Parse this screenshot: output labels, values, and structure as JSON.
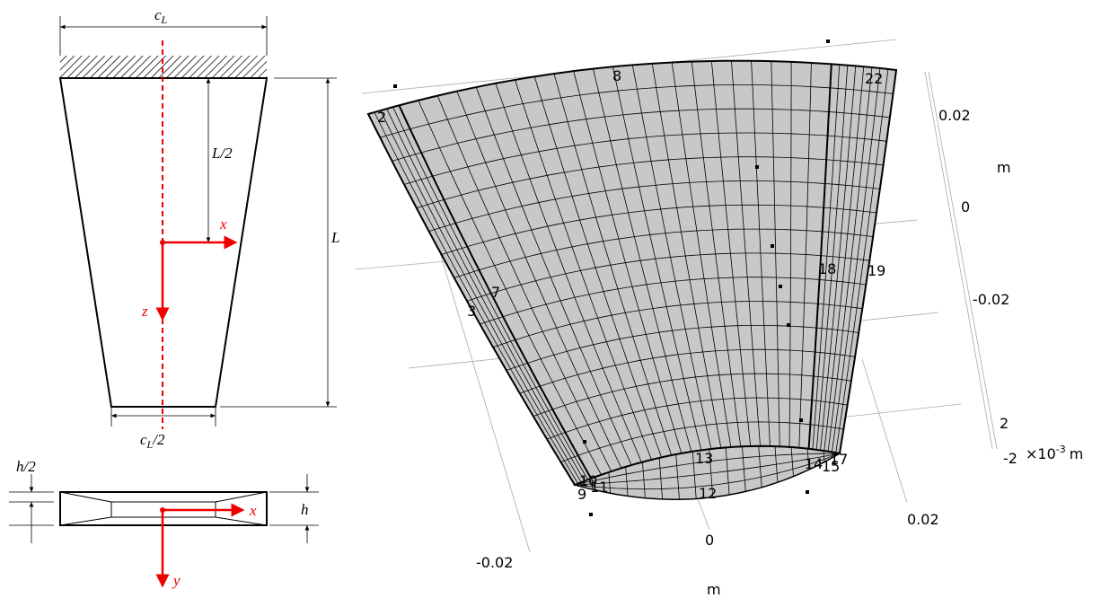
{
  "left": {
    "top_width": {
      "main": "c",
      "sub": "L"
    },
    "half_length": "L/2",
    "x_axis": "x",
    "z_axis": "z",
    "length": "L",
    "bottom_width": {
      "main": "c",
      "sub": "L",
      "suffix": "/2"
    },
    "half_height": "h/2",
    "height": "h",
    "section_x": "x",
    "section_y": "y"
  },
  "mesh": {
    "edge_labels": [
      "2",
      "8",
      "22",
      "3",
      "7",
      "18",
      "19",
      "13",
      "12",
      "10",
      "9",
      "11",
      "14",
      "15",
      "17"
    ]
  },
  "axes": {
    "vertical_ticks": [
      "0.02",
      "0",
      "-0.02"
    ],
    "vertical_unit": "m",
    "depth_ticks": [
      "2",
      "-2"
    ],
    "depth_scale": {
      "base": "×10",
      "exp": "-3",
      "unit": "m"
    },
    "horizontal_ticks": [
      "-0.02",
      "0",
      "0.02"
    ],
    "horizontal_unit": "m"
  }
}
